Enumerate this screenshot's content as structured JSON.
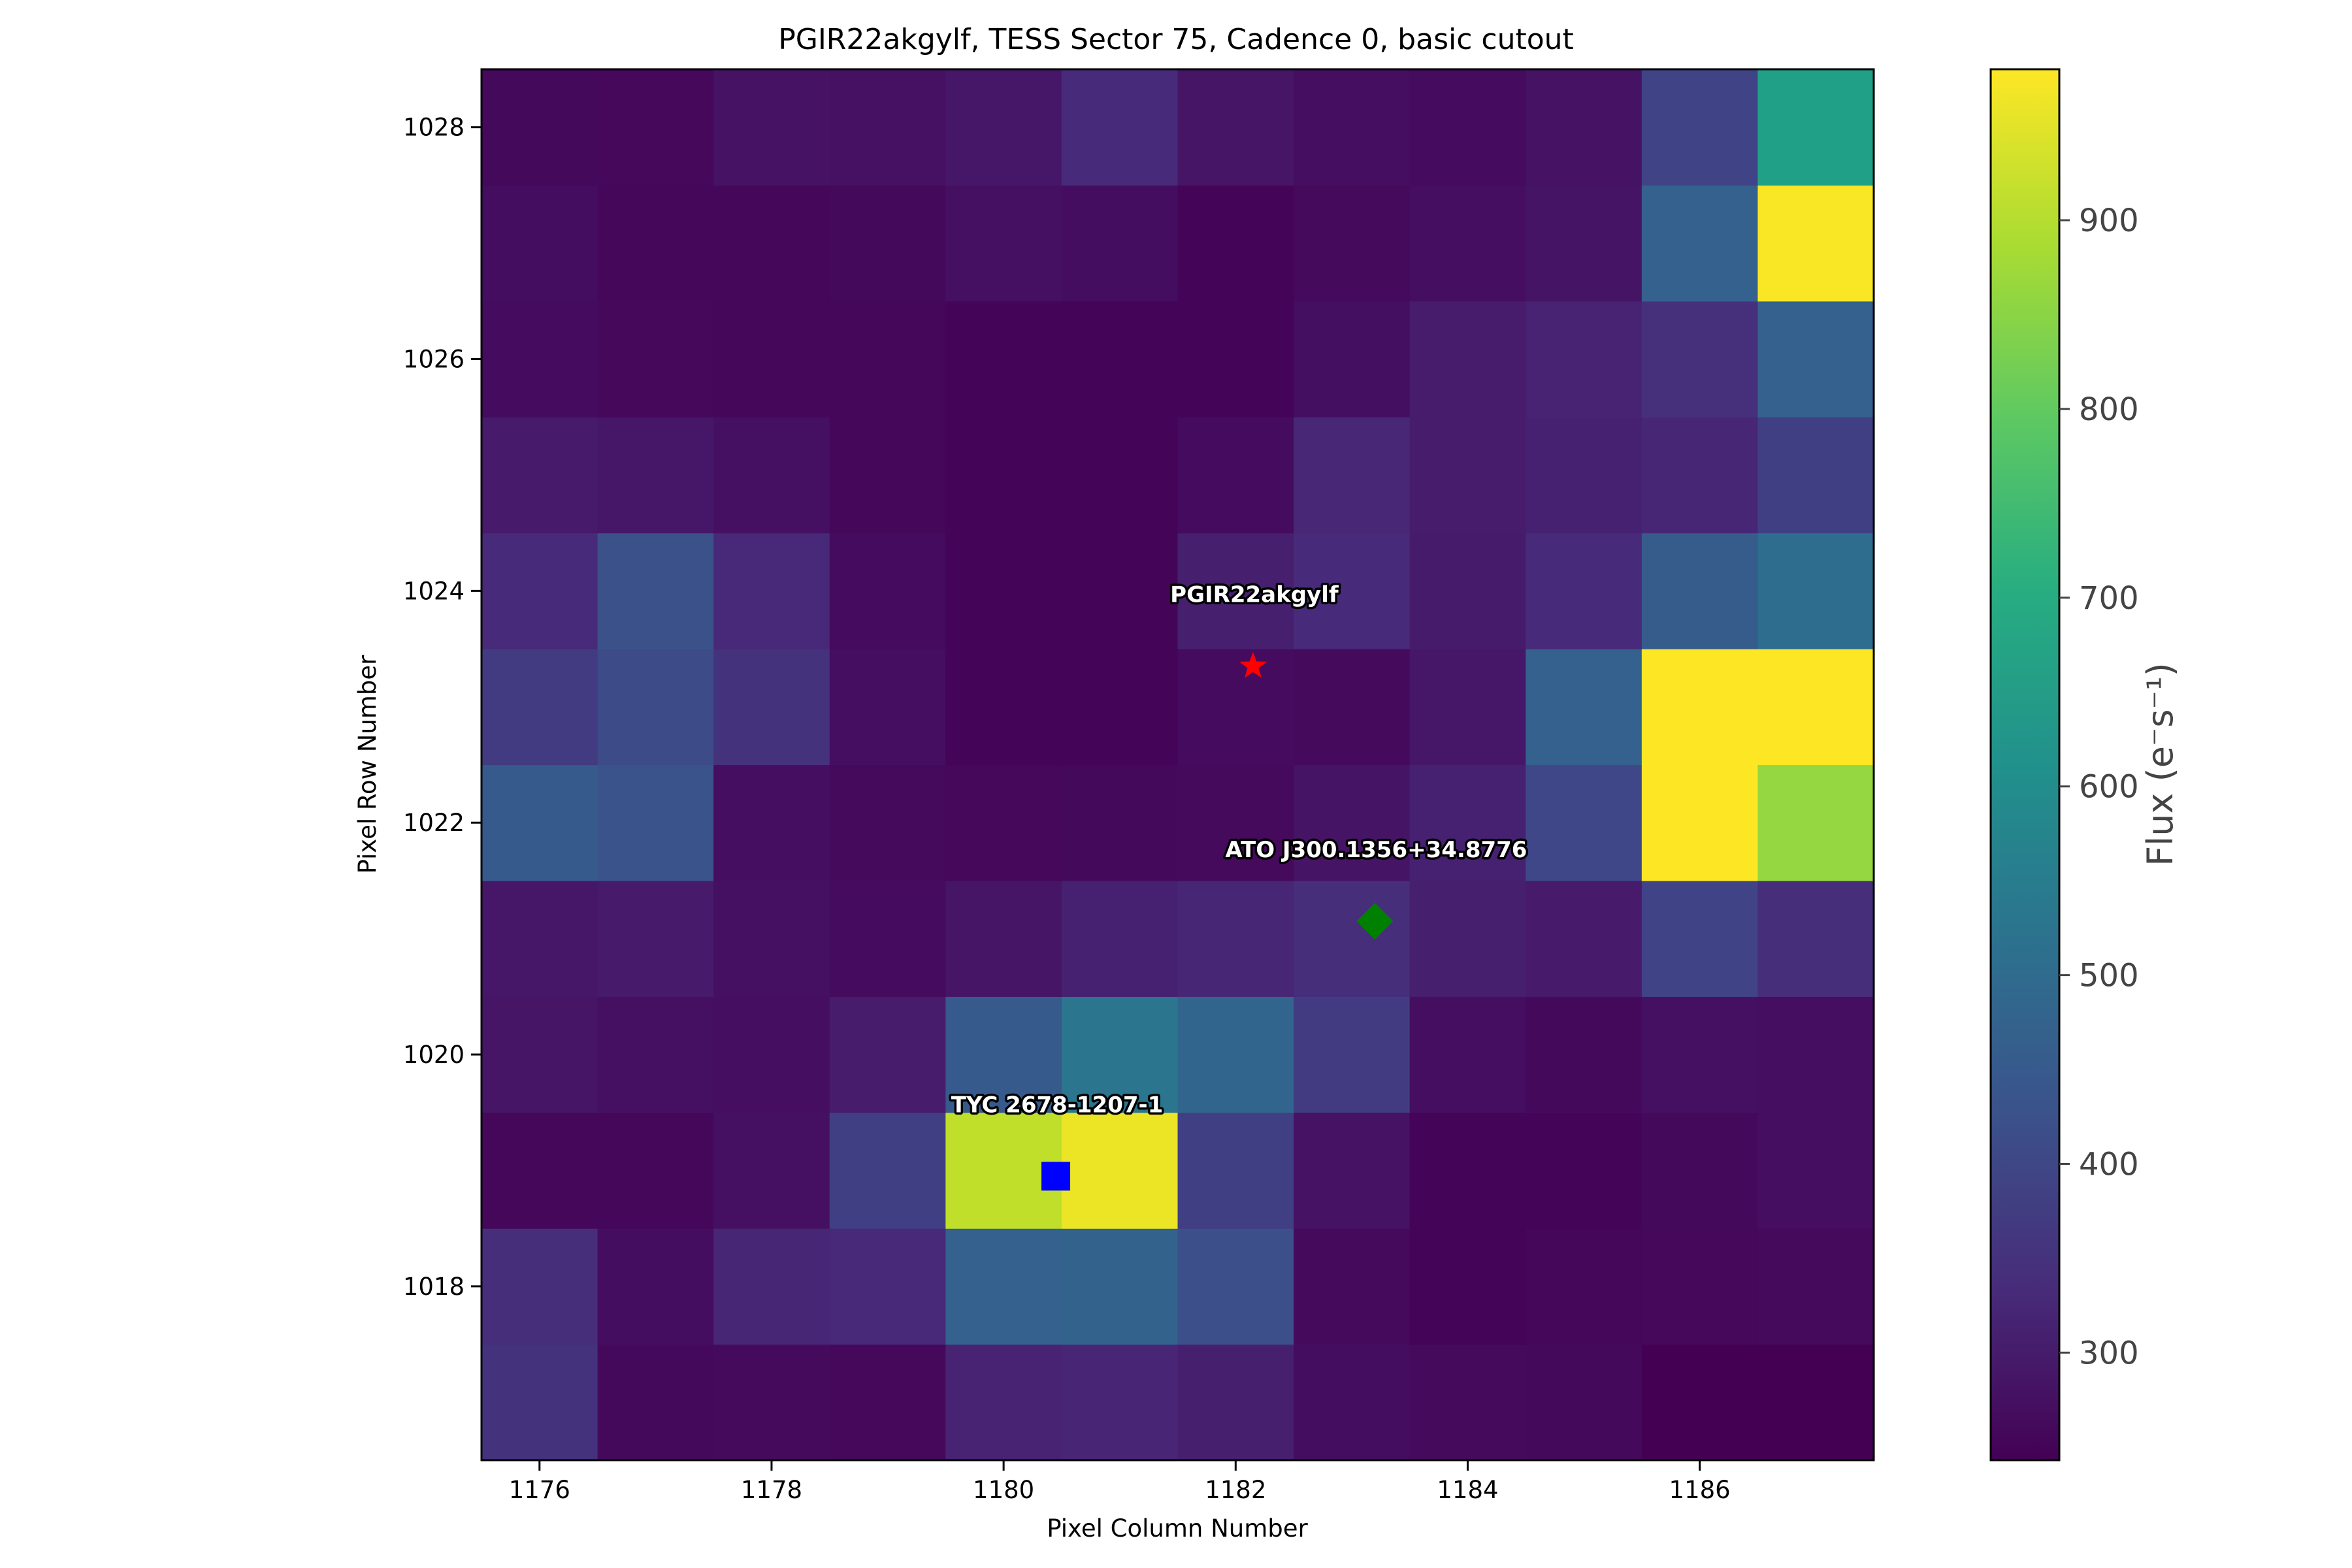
{
  "chart_data": {
    "type": "heatmap",
    "title": "PGIR22akgylf, TESS Sector 75, Cadence 0, basic cutout",
    "xlabel": "Pixel Column Number",
    "ylabel": "Pixel Row Number",
    "x_cells": [
      1176,
      1177,
      1178,
      1179,
      1180,
      1181,
      1182,
      1183,
      1184,
      1185,
      1186,
      1187
    ],
    "y_cells": [
      1017,
      1018,
      1019,
      1020,
      1021,
      1022,
      1023,
      1024,
      1025,
      1026,
      1027,
      1028
    ],
    "xlim": [
      1175.5,
      1187.5
    ],
    "ylim": [
      1016.5,
      1028.5
    ],
    "xticks": [
      1176,
      1178,
      1180,
      1182,
      1184,
      1186
    ],
    "yticks": [
      1018,
      1020,
      1022,
      1024,
      1026,
      1028
    ],
    "grid": false,
    "colormap": "viridis",
    "colorbar": {
      "label": "Flux (e⁻s⁻¹)",
      "range": [
        243,
        980
      ],
      "ticks": [
        300,
        400,
        500,
        600,
        700,
        800,
        900
      ],
      "position": "right"
    },
    "z": [
      [
        350,
        260,
        262,
        258,
        315,
        318,
        305,
        268,
        262,
        260,
        243,
        240
      ],
      [
        340,
        268,
        320,
        325,
        470,
        475,
        420,
        262,
        250,
        255,
        258,
        262
      ],
      [
        255,
        255,
        275,
        380,
        910,
        960,
        380,
        278,
        250,
        250,
        260,
        270
      ],
      [
        285,
        275,
        270,
        300,
        450,
        530,
        480,
        370,
        270,
        260,
        275,
        270
      ],
      [
        290,
        295,
        275,
        265,
        285,
        310,
        320,
        340,
        305,
        295,
        390,
        340
      ],
      [
        450,
        430,
        270,
        262,
        258,
        260,
        262,
        282,
        310,
        400,
        980,
        860
      ],
      [
        370,
        410,
        350,
        270,
        250,
        250,
        265,
        262,
        290,
        470,
        980,
        980
      ],
      [
        330,
        425,
        325,
        265,
        250,
        250,
        305,
        330,
        298,
        330,
        455,
        505
      ],
      [
        295,
        290,
        275,
        255,
        250,
        250,
        265,
        322,
        300,
        310,
        320,
        380
      ],
      [
        265,
        258,
        255,
        255,
        250,
        250,
        252,
        272,
        300,
        315,
        345,
        470
      ],
      [
        268,
        255,
        255,
        260,
        275,
        268,
        252,
        262,
        270,
        282,
        470,
        975
      ],
      [
        260,
        258,
        280,
        277,
        290,
        330,
        285,
        270,
        265,
        280,
        390,
        660
      ]
    ],
    "markers": [
      {
        "name": "PGIR22akgylf",
        "x": 1182.15,
        "y": 1023.35,
        "shape": "star",
        "color": "#ff0000"
      },
      {
        "name": "ATO J300.1356+34.8776",
        "x": 1183.2,
        "y": 1021.15,
        "shape": "diamond",
        "color": "#008000"
      },
      {
        "name": "TYC 2678-1207-1",
        "x": 1180.45,
        "y": 1018.95,
        "shape": "square",
        "color": "#0000ff"
      }
    ]
  }
}
